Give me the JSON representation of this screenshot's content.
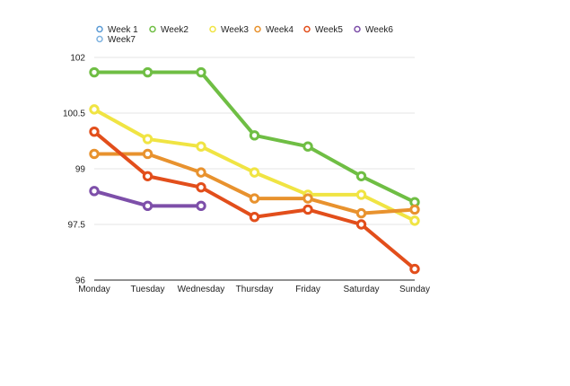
{
  "chart_data": {
    "type": "line",
    "title": "",
    "xlabel": "",
    "ylabel": "",
    "categories": [
      "Monday",
      "Tuesday",
      "Wednesday",
      "Thursday",
      "Friday",
      "Saturday",
      "Sunday"
    ],
    "y_ticks": [
      "102",
      "100.5",
      "99",
      "97.5",
      "96"
    ],
    "ylim": [
      96,
      102
    ],
    "grid": true,
    "legend_position": "top-left",
    "series": [
      {
        "name": "Week 1",
        "color": "#5b9bd5",
        "values": [
          null,
          null,
          null,
          null,
          null,
          null,
          null
        ]
      },
      {
        "name": "Week2",
        "color": "#6fbe44",
        "values": [
          101.6,
          101.6,
          101.6,
          99.9,
          99.6,
          98.8,
          98.1
        ]
      },
      {
        "name": "Week3",
        "color": "#f0e443",
        "values": [
          100.6,
          99.8,
          99.6,
          98.9,
          98.3,
          98.3,
          97.6
        ]
      },
      {
        "name": "Week4",
        "color": "#e8922e",
        "values": [
          99.4,
          99.4,
          98.9,
          98.2,
          98.2,
          97.8,
          97.9
        ]
      },
      {
        "name": "Week5",
        "color": "#e24e1b",
        "values": [
          100.0,
          98.8,
          98.5,
          97.7,
          97.9,
          97.5,
          96.3
        ]
      },
      {
        "name": "Week6",
        "color": "#7d4fa9",
        "values": [
          98.4,
          98.0,
          98.0,
          null,
          null,
          null,
          null
        ]
      },
      {
        "name": "Week7",
        "color": "#7fb3e0",
        "values": [
          null,
          null,
          null,
          null,
          null,
          null,
          null
        ]
      }
    ]
  }
}
